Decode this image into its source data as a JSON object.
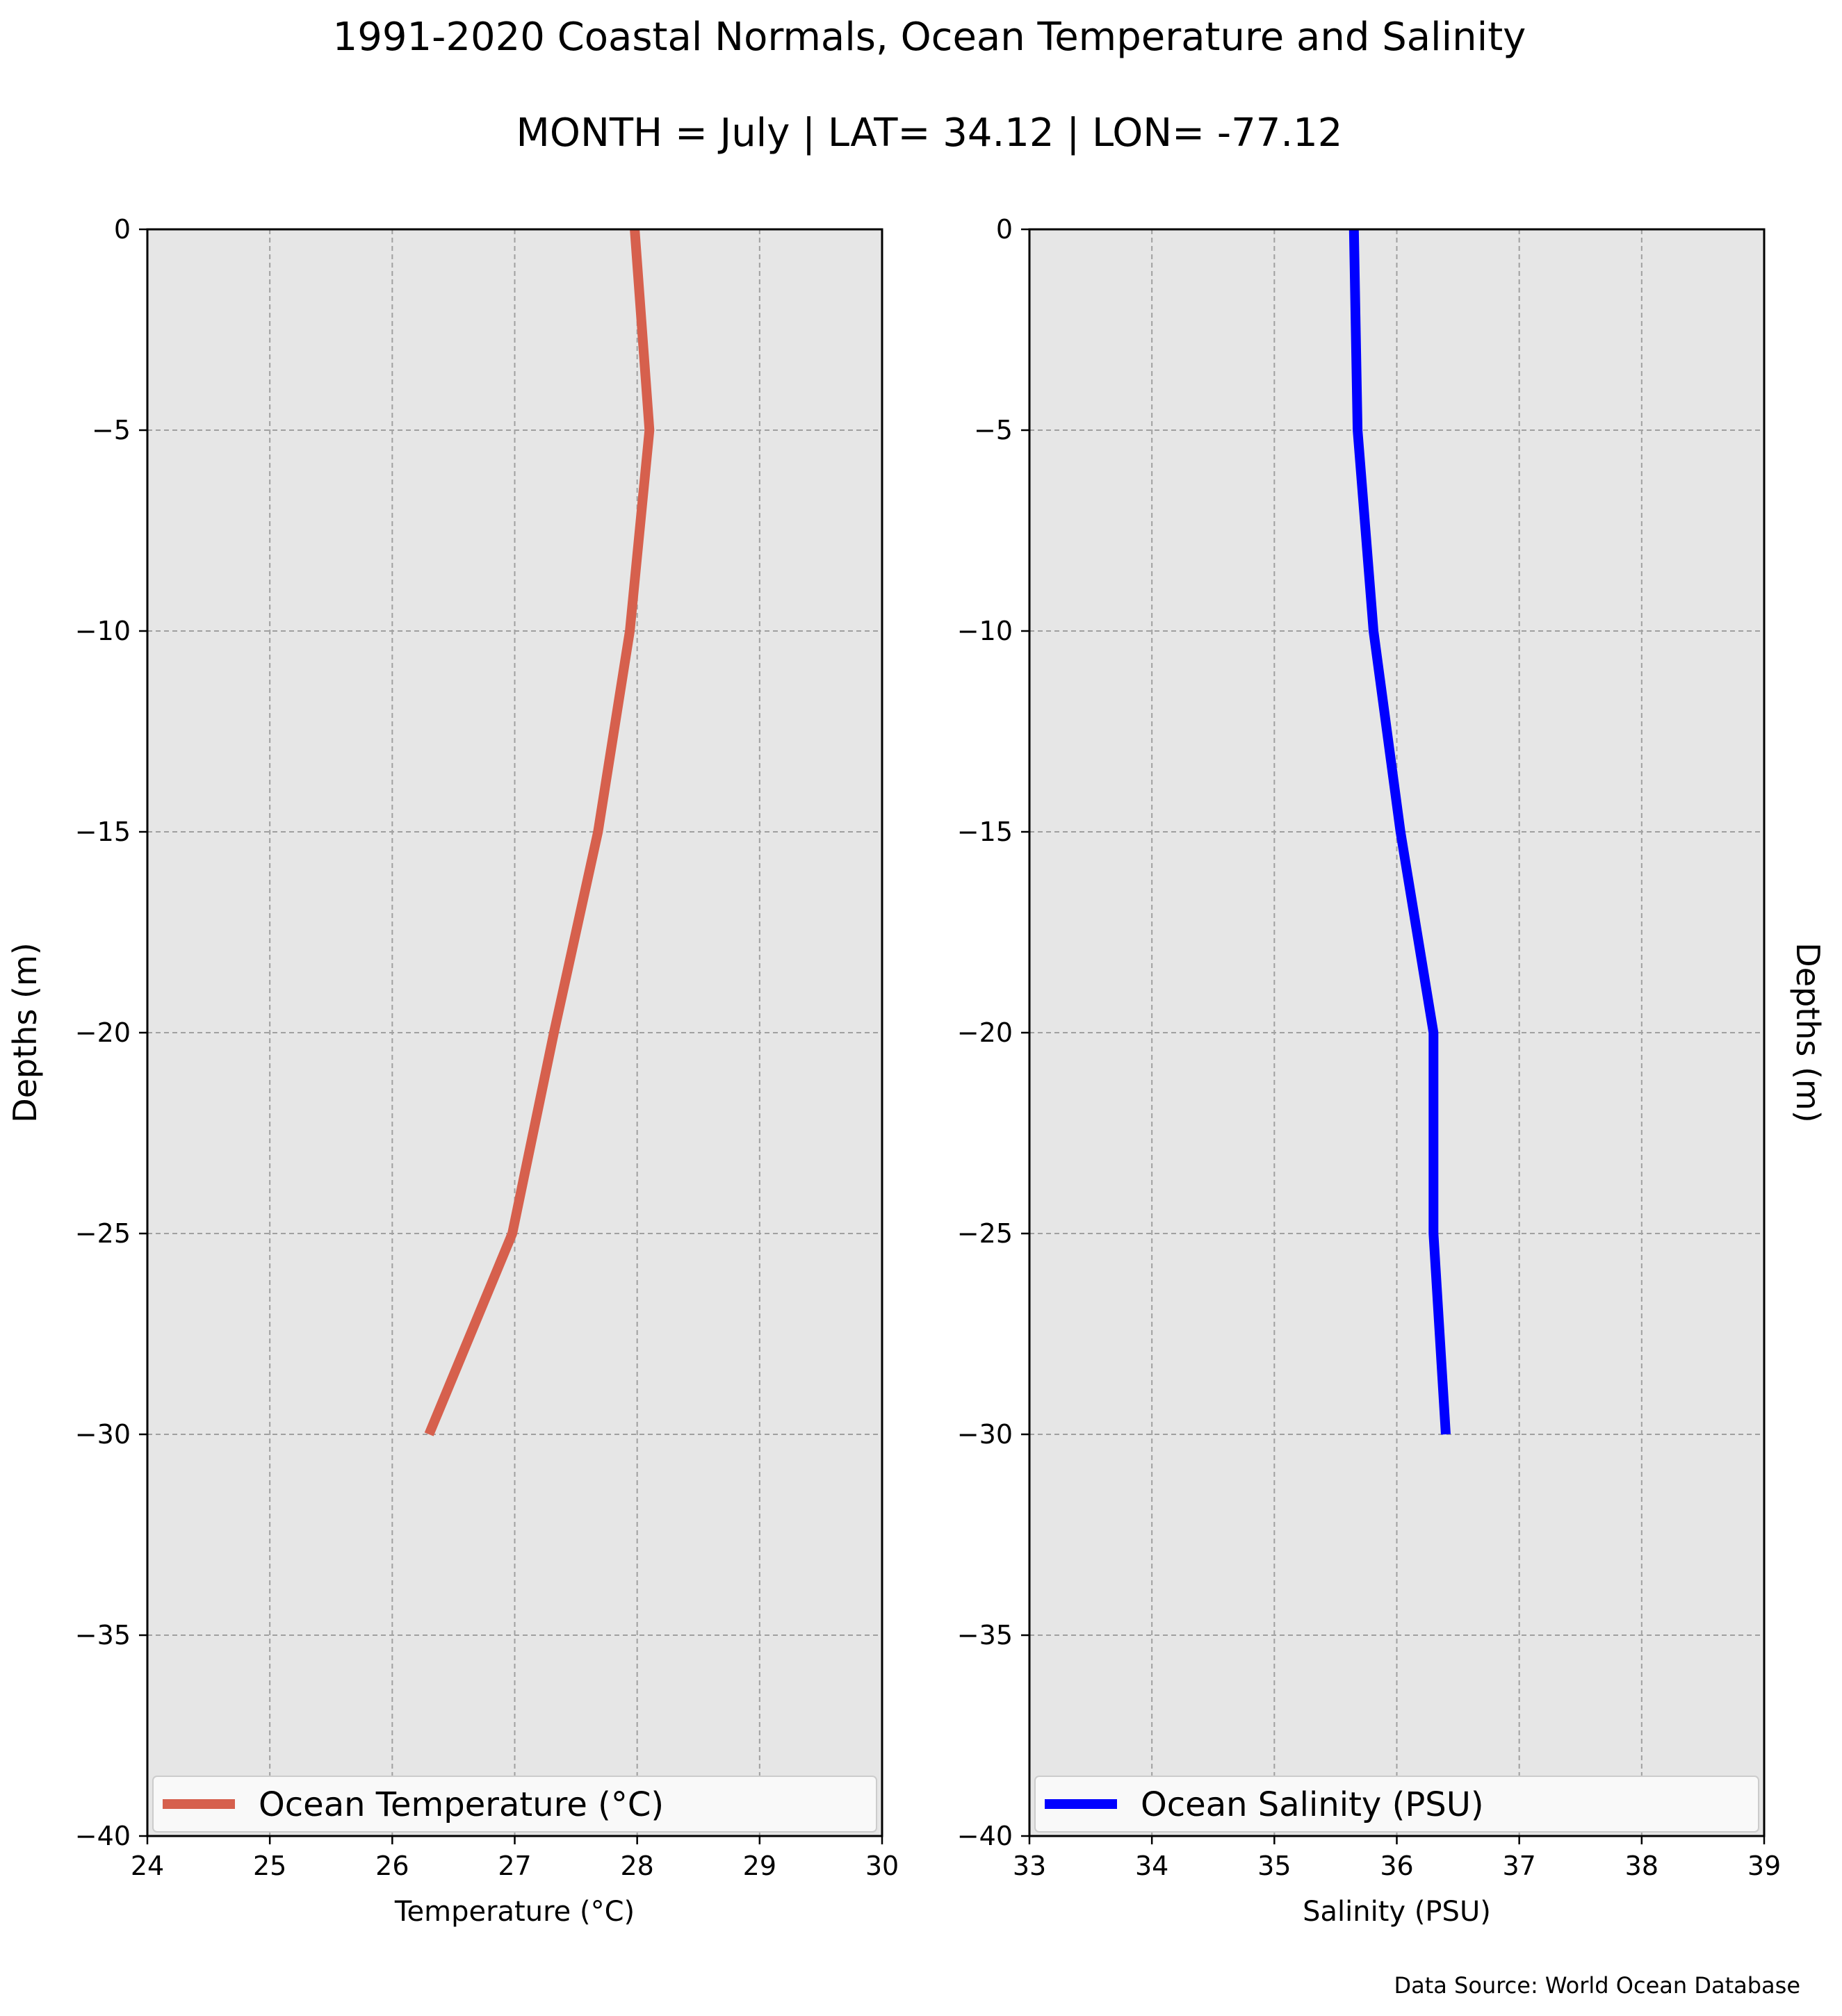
{
  "figure": {
    "title": "1991-2020 Coastal Normals, Ocean Temperature and Salinity",
    "subtitle": "MONTH = July | LAT= 34.12 | LON= -77.12",
    "source": "Data Source: World Ocean Database"
  },
  "chart_data": [
    {
      "type": "line",
      "xlabel": "Temperature ($^\\circ$C)",
      "xlabel_display": "Temperature (°C)",
      "ylabel": "Depths (m)",
      "xlim": [
        24,
        30
      ],
      "ylim": [
        -40,
        0
      ],
      "xticks": [
        24,
        25,
        26,
        27,
        28,
        29,
        30
      ],
      "yticks": [
        0,
        -5,
        -10,
        -15,
        -20,
        -25,
        -30,
        -35,
        -40
      ],
      "grid": true,
      "legend_position": "lower-center",
      "series": [
        {
          "name": "Ocean Temperature (°C)",
          "color": "#d6604d",
          "x": [
            27.98,
            28.1,
            27.94,
            27.68,
            27.32,
            26.98,
            26.3
          ],
          "y": [
            0,
            -5,
            -10,
            -15,
            -20,
            -25,
            -30
          ]
        }
      ]
    },
    {
      "type": "line",
      "xlabel": "Salinity (PSU)",
      "ylabel": "Depths (m)",
      "xlim": [
        33,
        39
      ],
      "ylim": [
        -40,
        0
      ],
      "xticks": [
        33,
        34,
        35,
        36,
        37,
        38,
        39
      ],
      "yticks": [
        0,
        -5,
        -10,
        -15,
        -20,
        -25,
        -30,
        -35,
        -40
      ],
      "grid": true,
      "legend_position": "lower-center",
      "series": [
        {
          "name": "Ocean Salinity (PSU)",
          "color": "#0000ff",
          "x": [
            35.65,
            35.68,
            35.81,
            36.03,
            36.3,
            36.3,
            36.4
          ],
          "y": [
            0,
            -5,
            -10,
            -15,
            -20,
            -25,
            -30
          ]
        }
      ]
    }
  ],
  "colors": {
    "axes_background": "#e6e6e6",
    "grid": "#a0a0a0",
    "legend_background": "#f9f9f9"
  }
}
